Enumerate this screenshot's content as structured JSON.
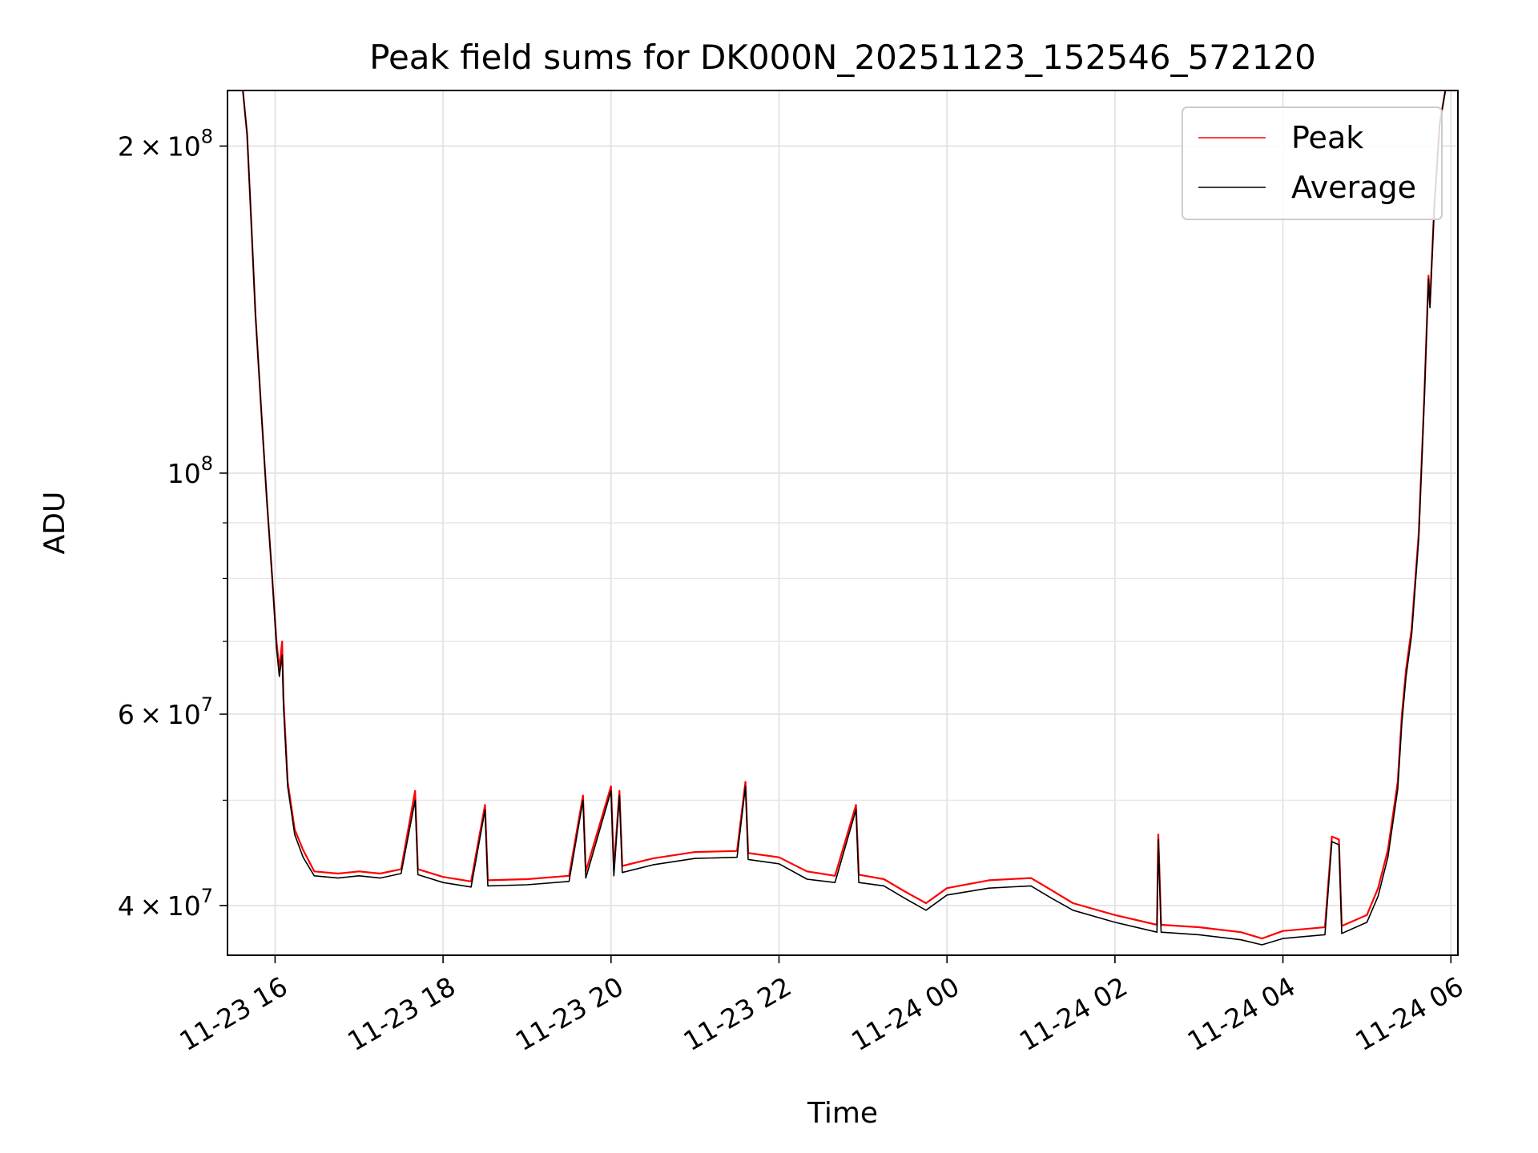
{
  "chart_data": {
    "type": "line",
    "title": "Peak field sums for DK000N_20251123_152546_572120",
    "xlabel": "Time",
    "ylabel": "ADU",
    "y_scale": "log",
    "x_scale": "time",
    "xlim": [
      "2025-11-23 15:26",
      "2025-11-24 06:05"
    ],
    "ylim": [
      36000000,
      225000000
    ],
    "grid": true,
    "legend": {
      "placement": "top-right",
      "entries": [
        "Peak",
        "Average"
      ]
    },
    "x_ticks": [
      {
        "value": "2025-11-23 16:00",
        "label": "11-23 16"
      },
      {
        "value": "2025-11-23 18:00",
        "label": "11-23 18"
      },
      {
        "value": "2025-11-23 20:00",
        "label": "11-23 20"
      },
      {
        "value": "2025-11-23 22:00",
        "label": "11-23 22"
      },
      {
        "value": "2025-11-24 00:00",
        "label": "11-24 00"
      },
      {
        "value": "2025-11-24 02:00",
        "label": "11-24 02"
      },
      {
        "value": "2025-11-24 04:00",
        "label": "11-24 04"
      },
      {
        "value": "2025-11-24 06:00",
        "label": "11-24 06"
      }
    ],
    "y_major_ticks": [
      {
        "value": 40000000,
        "mantissa": "4",
        "exponent": "7"
      },
      {
        "value": 60000000,
        "mantissa": "6",
        "exponent": "7"
      },
      {
        "value": 100000000,
        "mantissa": "",
        "exponent": "8"
      },
      {
        "value": 200000000,
        "mantissa": "2",
        "exponent": "8"
      }
    ],
    "y_minor_ticks": [
      50000000,
      70000000,
      80000000,
      90000000
    ],
    "series": [
      {
        "name": "Peak",
        "color": "#ff0000",
        "points": [
          [
            "2025-11-23 15:26",
            225000000
          ],
          [
            "2025-11-23 15:37",
            225000000
          ],
          [
            "2025-11-23 15:40",
            205000000
          ],
          [
            "2025-11-23 15:43",
            170000000
          ],
          [
            "2025-11-23 15:46",
            140000000
          ],
          [
            "2025-11-23 15:50",
            115000000
          ],
          [
            "2025-11-23 15:54",
            95000000
          ],
          [
            "2025-11-23 15:58",
            80000000
          ],
          [
            "2025-11-23 16:01",
            70000000
          ],
          [
            "2025-11-23 16:03",
            66000000
          ],
          [
            "2025-11-23 16:05",
            70000000
          ],
          [
            "2025-11-23 16:06",
            62000000
          ],
          [
            "2025-11-23 16:09",
            52000000
          ],
          [
            "2025-11-23 16:14",
            47000000
          ],
          [
            "2025-11-23 16:20",
            45000000
          ],
          [
            "2025-11-23 16:28",
            43000000
          ],
          [
            "2025-11-23 16:45",
            42800000
          ],
          [
            "2025-11-23 17:00",
            43000000
          ],
          [
            "2025-11-23 17:15",
            42800000
          ],
          [
            "2025-11-23 17:30",
            43200000
          ],
          [
            "2025-11-23 17:40",
            51000000
          ],
          [
            "2025-11-23 17:42",
            43200000
          ],
          [
            "2025-11-23 18:00",
            42500000
          ],
          [
            "2025-11-23 18:20",
            42100000
          ],
          [
            "2025-11-23 18:30",
            49500000
          ],
          [
            "2025-11-23 18:32",
            42200000
          ],
          [
            "2025-11-23 19:00",
            42300000
          ],
          [
            "2025-11-23 19:30",
            42600000
          ],
          [
            "2025-11-23 19:40",
            50500000
          ],
          [
            "2025-11-23 19:42",
            43000000
          ],
          [
            "2025-11-23 20:00",
            51500000
          ],
          [
            "2025-11-23 20:02",
            43200000
          ],
          [
            "2025-11-23 20:06",
            51000000
          ],
          [
            "2025-11-23 20:08",
            43500000
          ],
          [
            "2025-11-23 20:30",
            44200000
          ],
          [
            "2025-11-23 21:00",
            44800000
          ],
          [
            "2025-11-23 21:30",
            44900000
          ],
          [
            "2025-11-23 21:36",
            52000000
          ],
          [
            "2025-11-23 21:38",
            44700000
          ],
          [
            "2025-11-23 22:00",
            44300000
          ],
          [
            "2025-11-23 22:20",
            43000000
          ],
          [
            "2025-11-23 22:40",
            42600000
          ],
          [
            "2025-11-23 22:55",
            49500000
          ],
          [
            "2025-11-23 22:57",
            42700000
          ],
          [
            "2025-11-23 23:15",
            42300000
          ],
          [
            "2025-11-23 23:30",
            41200000
          ],
          [
            "2025-11-23 23:45",
            40200000
          ],
          [
            "2025-11-24 00:00",
            41500000
          ],
          [
            "2025-11-24 00:30",
            42200000
          ],
          [
            "2025-11-24 01:00",
            42400000
          ],
          [
            "2025-11-24 01:15",
            41300000
          ],
          [
            "2025-11-24 01:30",
            40200000
          ],
          [
            "2025-11-24 02:00",
            39200000
          ],
          [
            "2025-11-24 02:30",
            38400000
          ],
          [
            "2025-11-24 02:31",
            46500000
          ],
          [
            "2025-11-24 02:33",
            38400000
          ],
          [
            "2025-11-24 03:00",
            38200000
          ],
          [
            "2025-11-24 03:30",
            37800000
          ],
          [
            "2025-11-24 03:45",
            37300000
          ],
          [
            "2025-11-24 04:00",
            37900000
          ],
          [
            "2025-11-24 04:30",
            38200000
          ],
          [
            "2025-11-24 04:35",
            46300000
          ],
          [
            "2025-11-24 04:40",
            46000000
          ],
          [
            "2025-11-24 04:42",
            38300000
          ],
          [
            "2025-11-24 05:00",
            39200000
          ],
          [
            "2025-11-24 05:08",
            41500000
          ],
          [
            "2025-11-24 05:15",
            45000000
          ],
          [
            "2025-11-24 05:22",
            52000000
          ],
          [
            "2025-11-24 05:25",
            60000000
          ],
          [
            "2025-11-24 05:28",
            66000000
          ],
          [
            "2025-11-24 05:32",
            72000000
          ],
          [
            "2025-11-24 05:37",
            88000000
          ],
          [
            "2025-11-24 05:41",
            118000000
          ],
          [
            "2025-11-24 05:44",
            152000000
          ],
          [
            "2025-11-24 05:45",
            143000000
          ],
          [
            "2025-11-24 05:48",
            175000000
          ],
          [
            "2025-11-24 05:52",
            210000000
          ],
          [
            "2025-11-24 05:56",
            225000000
          ],
          [
            "2025-11-24 06:05",
            225000000
          ]
        ]
      },
      {
        "name": "Average",
        "color": "#000000",
        "points": [
          [
            "2025-11-23 15:26",
            225000000
          ],
          [
            "2025-11-23 15:37",
            225000000
          ],
          [
            "2025-11-23 15:40",
            205000000
          ],
          [
            "2025-11-23 15:43",
            170000000
          ],
          [
            "2025-11-23 15:46",
            140000000
          ],
          [
            "2025-11-23 15:50",
            115000000
          ],
          [
            "2025-11-23 15:54",
            95000000
          ],
          [
            "2025-11-23 15:58",
            80000000
          ],
          [
            "2025-11-23 16:01",
            69000000
          ],
          [
            "2025-11-23 16:03",
            65000000
          ],
          [
            "2025-11-23 16:05",
            68000000
          ],
          [
            "2025-11-23 16:06",
            61000000
          ],
          [
            "2025-11-23 16:09",
            51500000
          ],
          [
            "2025-11-23 16:14",
            46500000
          ],
          [
            "2025-11-23 16:20",
            44300000
          ],
          [
            "2025-11-23 16:28",
            42600000
          ],
          [
            "2025-11-23 16:45",
            42400000
          ],
          [
            "2025-11-23 17:00",
            42600000
          ],
          [
            "2025-11-23 17:15",
            42400000
          ],
          [
            "2025-11-23 17:30",
            42800000
          ],
          [
            "2025-11-23 17:40",
            50000000
          ],
          [
            "2025-11-23 17:42",
            42700000
          ],
          [
            "2025-11-23 18:00",
            42000000
          ],
          [
            "2025-11-23 18:20",
            41600000
          ],
          [
            "2025-11-23 18:30",
            49000000
          ],
          [
            "2025-11-23 18:32",
            41700000
          ],
          [
            "2025-11-23 19:00",
            41800000
          ],
          [
            "2025-11-23 19:30",
            42100000
          ],
          [
            "2025-11-23 19:40",
            50000000
          ],
          [
            "2025-11-23 19:42",
            42400000
          ],
          [
            "2025-11-23 20:00",
            51000000
          ],
          [
            "2025-11-23 20:02",
            42600000
          ],
          [
            "2025-11-23 20:06",
            50500000
          ],
          [
            "2025-11-23 20:08",
            42900000
          ],
          [
            "2025-11-23 20:30",
            43600000
          ],
          [
            "2025-11-23 21:00",
            44200000
          ],
          [
            "2025-11-23 21:30",
            44300000
          ],
          [
            "2025-11-23 21:36",
            51500000
          ],
          [
            "2025-11-23 21:38",
            44100000
          ],
          [
            "2025-11-23 22:00",
            43700000
          ],
          [
            "2025-11-23 22:20",
            42300000
          ],
          [
            "2025-11-23 22:40",
            42000000
          ],
          [
            "2025-11-23 22:55",
            49000000
          ],
          [
            "2025-11-23 22:57",
            42000000
          ],
          [
            "2025-11-23 23:15",
            41700000
          ],
          [
            "2025-11-23 23:30",
            40600000
          ],
          [
            "2025-11-23 23:45",
            39600000
          ],
          [
            "2025-11-24 00:00",
            40900000
          ],
          [
            "2025-11-24 00:30",
            41500000
          ],
          [
            "2025-11-24 01:00",
            41700000
          ],
          [
            "2025-11-24 01:15",
            40600000
          ],
          [
            "2025-11-24 01:30",
            39600000
          ],
          [
            "2025-11-24 02:00",
            38600000
          ],
          [
            "2025-11-24 02:30",
            37800000
          ],
          [
            "2025-11-24 02:31",
            46000000
          ],
          [
            "2025-11-24 02:33",
            37800000
          ],
          [
            "2025-11-24 03:00",
            37600000
          ],
          [
            "2025-11-24 03:30",
            37200000
          ],
          [
            "2025-11-24 03:45",
            36800000
          ],
          [
            "2025-11-24 04:00",
            37300000
          ],
          [
            "2025-11-24 04:30",
            37600000
          ],
          [
            "2025-11-24 04:35",
            45800000
          ],
          [
            "2025-11-24 04:40",
            45500000
          ],
          [
            "2025-11-24 04:42",
            37700000
          ],
          [
            "2025-11-24 05:00",
            38600000
          ],
          [
            "2025-11-24 05:08",
            40800000
          ],
          [
            "2025-11-24 05:15",
            44300000
          ],
          [
            "2025-11-24 05:22",
            51200000
          ],
          [
            "2025-11-24 05:25",
            59000000
          ],
          [
            "2025-11-24 05:28",
            65000000
          ],
          [
            "2025-11-24 05:32",
            71000000
          ],
          [
            "2025-11-24 05:37",
            87000000
          ],
          [
            "2025-11-24 05:41",
            117000000
          ],
          [
            "2025-11-24 05:44",
            151000000
          ],
          [
            "2025-11-24 05:45",
            142000000
          ],
          [
            "2025-11-24 05:48",
            174000000
          ],
          [
            "2025-11-24 05:52",
            209000000
          ],
          [
            "2025-11-24 05:56",
            225000000
          ],
          [
            "2025-11-24 06:05",
            225000000
          ]
        ]
      }
    ]
  }
}
